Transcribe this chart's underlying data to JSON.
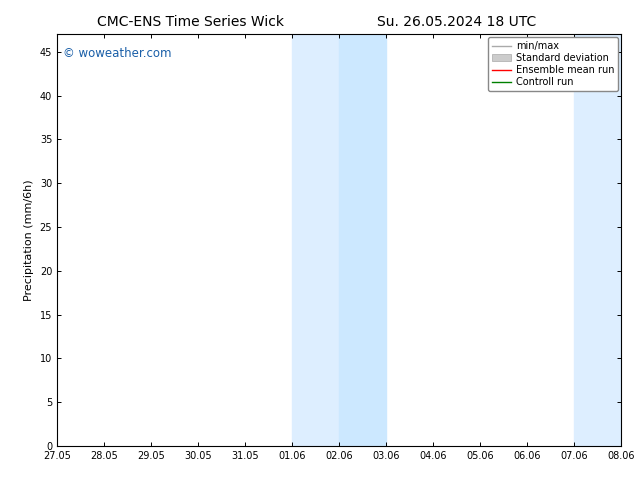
{
  "title_left": "CMC-ENS Time Series Wick",
  "title_right": "Su. 26.05.2024 18 UTC",
  "ylabel": "Precipitation (mm/6h)",
  "ylim": [
    0,
    47
  ],
  "yticks": [
    0,
    5,
    10,
    15,
    20,
    25,
    30,
    35,
    40,
    45
  ],
  "xtick_labels": [
    "27.05",
    "28.05",
    "29.05",
    "30.05",
    "31.05",
    "01.06",
    "02.06",
    "03.06",
    "04.06",
    "05.06",
    "06.06",
    "07.06",
    "08.06"
  ],
  "xtick_positions": [
    0,
    1,
    2,
    3,
    4,
    5,
    6,
    7,
    8,
    9,
    10,
    11,
    12
  ],
  "shaded_regions": [
    [
      5.0,
      6.0
    ],
    [
      6.0,
      7.0
    ],
    [
      11.0,
      12.0
    ],
    [
      12.0,
      13.0
    ]
  ],
  "shaded_colors": [
    "#ddeeff",
    "#cce8ff",
    "#ddeeff",
    "#cce8ff"
  ],
  "watermark_text": "© woweather.com",
  "watermark_color": "#1a5fa8",
  "legend_items": [
    {
      "label": "min/max",
      "color": "#aaaaaa",
      "lw": 1.0
    },
    {
      "label": "Standard deviation",
      "color": "#cccccc",
      "lw": 5
    },
    {
      "label": "Ensemble mean run",
      "color": "red",
      "lw": 1.0
    },
    {
      "label": "Controll run",
      "color": "green",
      "lw": 1.0
    }
  ],
  "bg_color": "#ffffff",
  "axes_bg": "#ffffff",
  "title_fontsize": 10,
  "tick_fontsize": 7,
  "ylabel_fontsize": 8,
  "legend_fontsize": 7
}
